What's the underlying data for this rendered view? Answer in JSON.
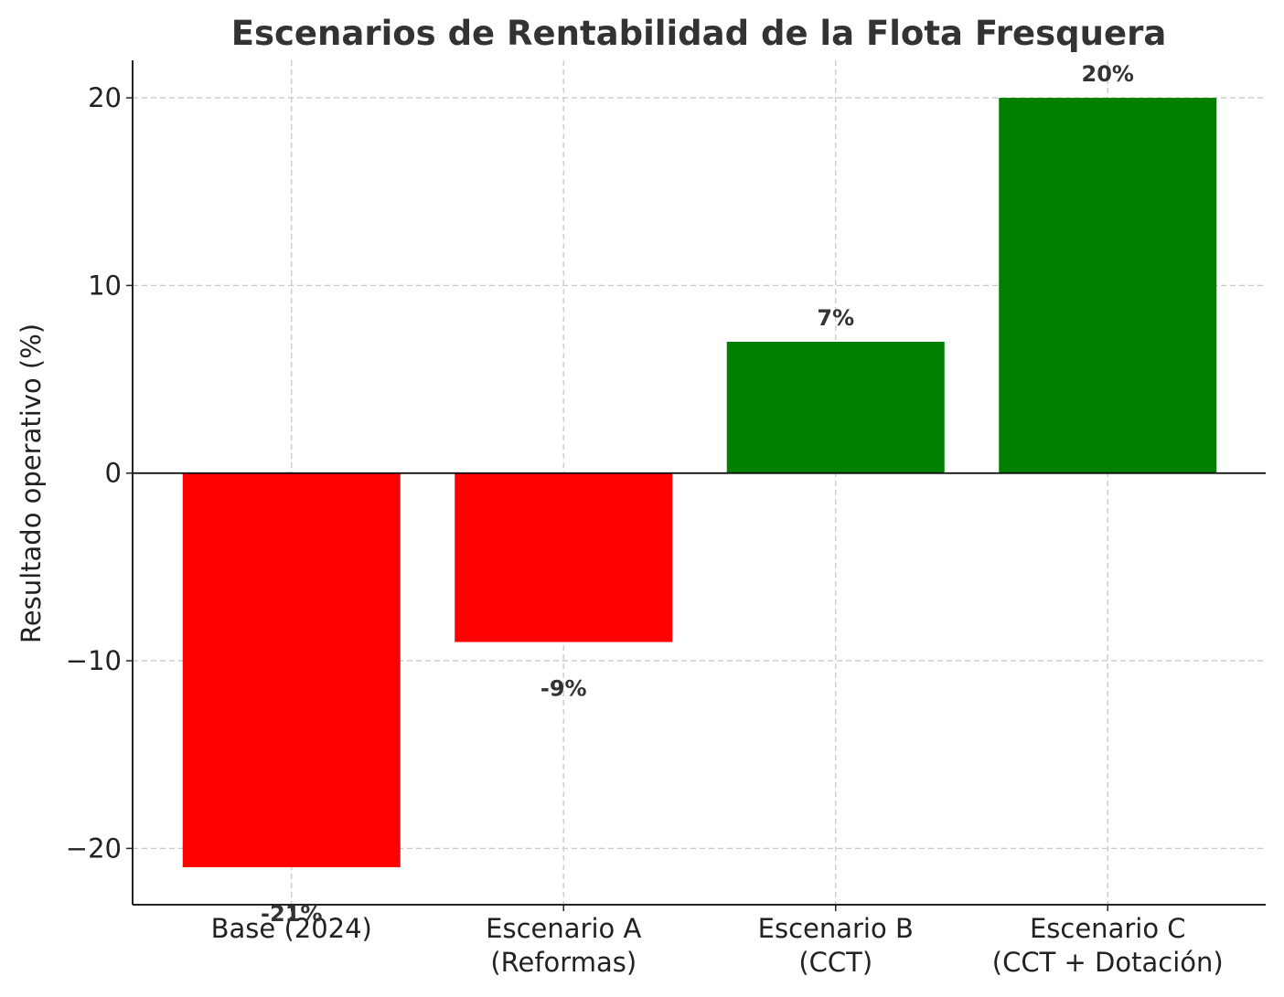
{
  "chart_data": {
    "type": "bar",
    "title": "Escenarios de Rentabilidad de la Flota Fresquera",
    "xlabel": "",
    "ylabel": "Resultado operativo (%)",
    "categories": [
      [
        "Base (2024)"
      ],
      [
        "Escenario A",
        "(Reformas)"
      ],
      [
        "Escenario B",
        "(CCT)"
      ],
      [
        "Escenario C",
        "(CCT + Dotación)"
      ]
    ],
    "values": [
      -21,
      -9,
      7,
      20
    ],
    "value_labels": [
      "-21%",
      "-9%",
      "7%",
      "20%"
    ],
    "colors": [
      "#ff0000",
      "#ff0000",
      "#008000",
      "#008000"
    ],
    "ylim": [
      -23,
      22
    ],
    "yticks": [
      -20,
      -10,
      0,
      10,
      20
    ],
    "ytick_labels": [
      "−20",
      "−10",
      "0",
      "10",
      "20"
    ],
    "grid": true,
    "zero_line": true
  }
}
